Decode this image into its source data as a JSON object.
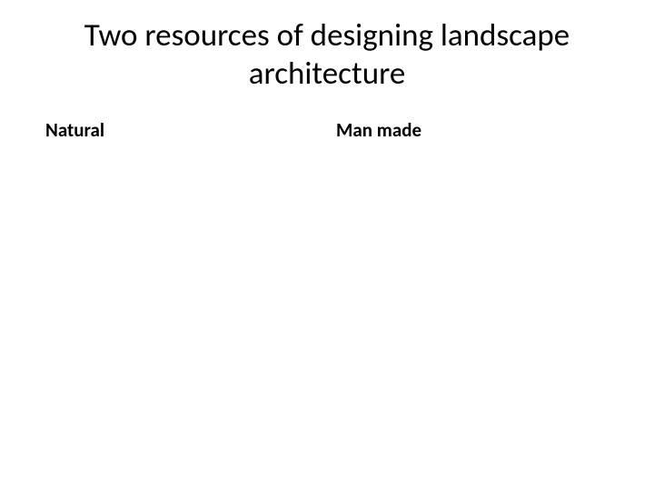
{
  "slide": {
    "title": "Two resources of designing landscape architecture",
    "columns": {
      "left": {
        "heading": "Natural"
      },
      "right": {
        "heading": "Man made"
      }
    }
  },
  "style": {
    "background_color": "#ffffff",
    "text_color": "#000000",
    "title_fontsize": 35,
    "title_fontweight": 400,
    "heading_fontsize": 21,
    "heading_fontweight": 700,
    "font_family": "Calibri"
  }
}
